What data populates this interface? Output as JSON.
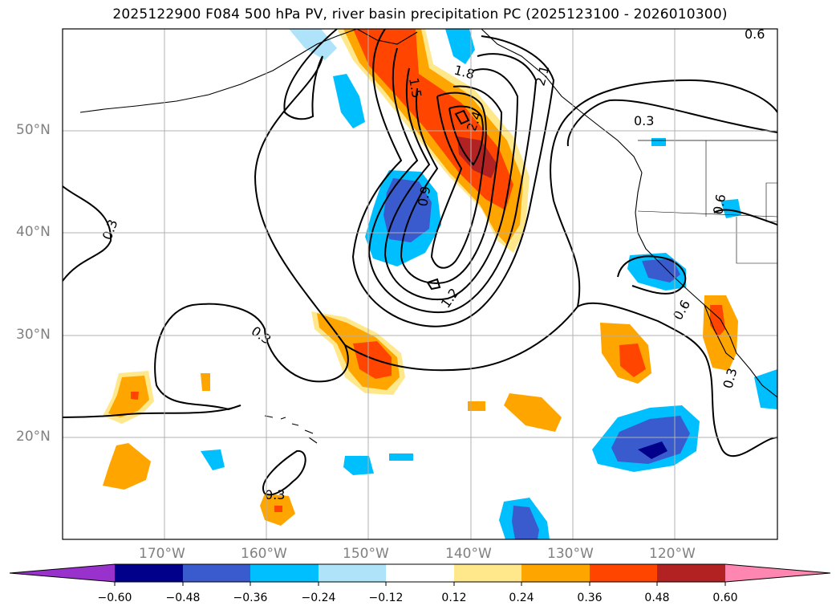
{
  "title": "2025122900 F084 500 hPa PV, river basin precipitation PC (2025123100 - 2026010300)",
  "map": {
    "region": "North Pacific / Western North America",
    "lat_labels": [
      "50°N",
      "40°N",
      "30°N",
      "20°N"
    ],
    "lon_labels": [
      "170°W",
      "160°W",
      "150°W",
      "140°W",
      "130°W",
      "120°W"
    ],
    "contour_labels": [
      "0.3",
      "0.3",
      "0.3",
      "0.3",
      "0.3",
      "0.6",
      "0.6",
      "0.6",
      "0.9",
      "1.2",
      "1.5",
      "1.8",
      "2.1",
      "2.4"
    ]
  },
  "colorbar": {
    "ticks": [
      "−0.60",
      "−0.48",
      "−0.36",
      "−0.24",
      "−0.12",
      "0.12",
      "0.24",
      "0.36",
      "0.48",
      "0.60"
    ],
    "colors": [
      "#9932cc",
      "#00008b",
      "#3a5bcd",
      "#00bfff",
      "#aee3fa",
      "#ffffff",
      "#ffe88c",
      "#ffa500",
      "#ff4500",
      "#b22222",
      "#ff86b0"
    ]
  }
}
